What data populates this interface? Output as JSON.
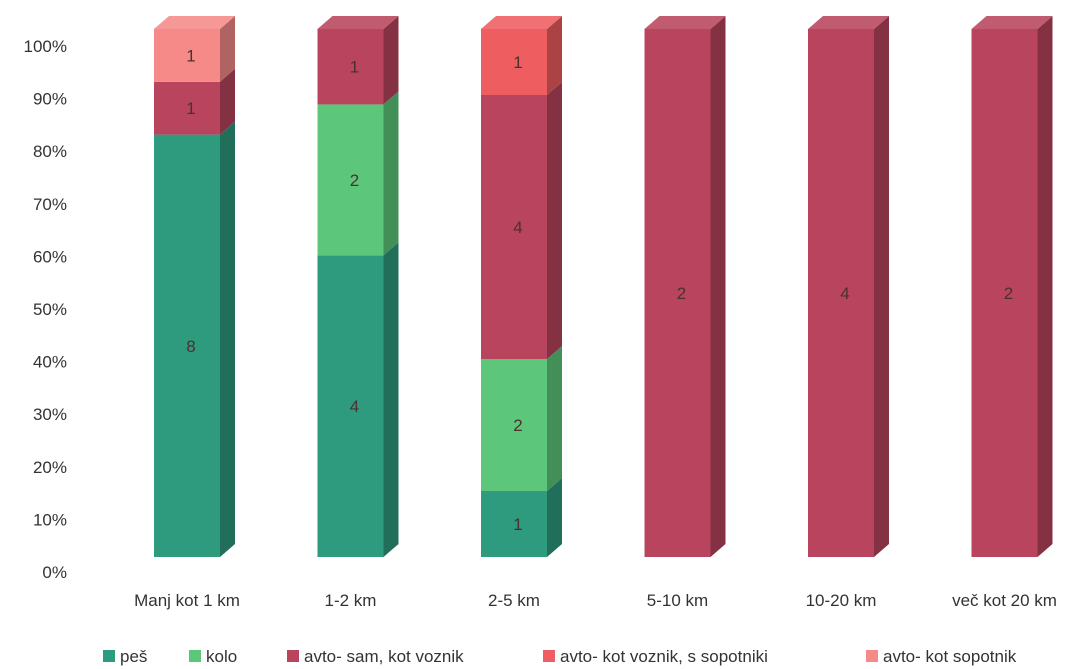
{
  "chart_data": {
    "type": "bar",
    "stacked": "percent",
    "three_d": true,
    "categories": [
      "Manj kot 1 km",
      "1-2 km",
      "2-5 km",
      "5-10 km",
      "10-20 km",
      "več kot 20 km"
    ],
    "series": [
      {
        "name": "peš",
        "color": "#2e9a7e",
        "values": [
          8,
          4,
          1,
          0,
          0,
          0
        ]
      },
      {
        "name": "kolo",
        "color": "#5cc77a",
        "values": [
          0,
          2,
          2,
          0,
          0,
          0
        ]
      },
      {
        "name": "avto- sam, kot voznik",
        "color": "#b8455d",
        "values": [
          1,
          1,
          4,
          2,
          4,
          2
        ]
      },
      {
        "name": "avto- kot voznik, s sopotniki",
        "color": "#ee5d60",
        "values": [
          0,
          0,
          1,
          0,
          0,
          0
        ]
      },
      {
        "name": "avto- kot sopotnik",
        "color": "#f58a88",
        "values": [
          1,
          0,
          0,
          0,
          0,
          0
        ]
      }
    ],
    "y_ticks": [
      "0%",
      "10%",
      "20%",
      "30%",
      "40%",
      "50%",
      "60%",
      "70%",
      "80%",
      "90%",
      "100%"
    ],
    "ylim": [
      0,
      100
    ],
    "grid": false,
    "legend": "bottom"
  }
}
